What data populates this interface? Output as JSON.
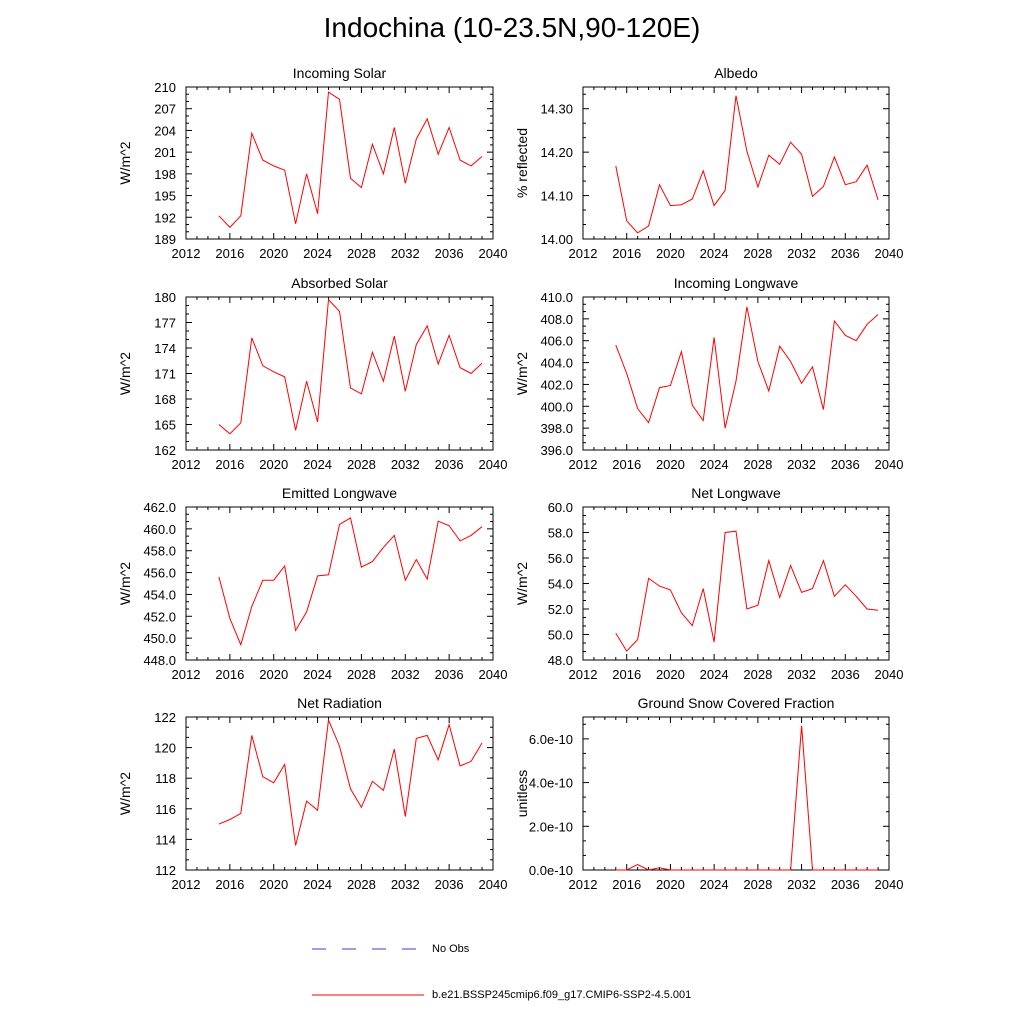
{
  "main_title": "Indochina (10-23.5N,90-120E)",
  "legend": [
    {
      "label": "No Obs",
      "color": "#3b3bd6",
      "style": "dashed"
    },
    {
      "label": "b.e21.BSSP245cmip6.f09_g17.CMIP6-SSP2-4.5.001",
      "color": "#ff0000",
      "style": "solid"
    }
  ],
  "chart_data": [
    {
      "type": "line",
      "title": "Incoming Solar",
      "ylabel": "W/m^2",
      "xlim": [
        2012,
        2040
      ],
      "xticks": [
        "2012",
        "2016",
        "2020",
        "2024",
        "2028",
        "2032",
        "2036",
        "2040"
      ],
      "ylim": [
        189,
        210
      ],
      "yticks": [
        "189",
        "192",
        "195",
        "198",
        "201",
        "204",
        "207",
        "210"
      ],
      "x": [
        2015,
        2016,
        2017,
        2018,
        2019,
        2020,
        2021,
        2022,
        2023,
        2024,
        2025,
        2026,
        2027,
        2028,
        2029,
        2030,
        2031,
        2032,
        2033,
        2034,
        2035,
        2036,
        2037,
        2038,
        2039
      ],
      "series": [
        {
          "color": "#ff0000",
          "values": [
            192.2,
            190.6,
            192.2,
            203.6,
            199.9,
            199.1,
            198.5,
            191.1,
            198.0,
            192.5,
            209.3,
            208.3,
            197.4,
            196.1,
            202.1,
            198.0,
            204.4,
            196.7,
            202.8,
            205.6,
            200.7,
            204.4,
            199.9,
            199.1,
            200.4
          ]
        }
      ]
    },
    {
      "type": "line",
      "title": "Albedo",
      "ylabel": "% reflected",
      "xlim": [
        2012,
        2040
      ],
      "xticks": [
        "2012",
        "2016",
        "2020",
        "2024",
        "2028",
        "2032",
        "2036",
        "2040"
      ],
      "ylim": [
        14.0,
        14.35
      ],
      "yticks": [
        "14.00",
        "14.10",
        "14.20",
        "14.30"
      ],
      "x": [
        2015,
        2016,
        2017,
        2018,
        2019,
        2020,
        2021,
        2022,
        2023,
        2024,
        2025,
        2026,
        2027,
        2028,
        2029,
        2030,
        2031,
        2032,
        2033,
        2034,
        2035,
        2036,
        2037,
        2038,
        2039
      ],
      "series": [
        {
          "color": "#ff0000",
          "values": [
            14.168,
            14.042,
            14.014,
            14.03,
            14.125,
            14.077,
            14.079,
            14.092,
            14.157,
            14.077,
            14.112,
            14.33,
            14.202,
            14.12,
            14.193,
            14.172,
            14.223,
            14.195,
            14.098,
            14.121,
            14.189,
            14.125,
            14.132,
            14.17,
            14.09
          ]
        }
      ]
    },
    {
      "type": "line",
      "title": "Absorbed Solar",
      "ylabel": "W/m^2",
      "xlim": [
        2012,
        2040
      ],
      "xticks": [
        "2012",
        "2016",
        "2020",
        "2024",
        "2028",
        "2032",
        "2036",
        "2040"
      ],
      "ylim": [
        162,
        180
      ],
      "yticks": [
        "162",
        "165",
        "168",
        "171",
        "174",
        "177",
        "180"
      ],
      "x": [
        2015,
        2016,
        2017,
        2018,
        2019,
        2020,
        2021,
        2022,
        2023,
        2024,
        2025,
        2026,
        2027,
        2028,
        2029,
        2030,
        2031,
        2032,
        2033,
        2034,
        2035,
        2036,
        2037,
        2038,
        2039
      ],
      "series": [
        {
          "color": "#ff0000",
          "values": [
            165.0,
            163.9,
            165.2,
            175.2,
            171.9,
            171.2,
            170.6,
            164.3,
            170.1,
            165.3,
            179.7,
            178.3,
            169.3,
            168.6,
            173.5,
            170.1,
            175.4,
            168.9,
            174.4,
            176.6,
            172.1,
            175.5,
            171.7,
            171.0,
            172.2
          ]
        }
      ]
    },
    {
      "type": "line",
      "title": "Incoming Longwave",
      "ylabel": "W/m^2",
      "xlim": [
        2012,
        2040
      ],
      "xticks": [
        "2012",
        "2016",
        "2020",
        "2024",
        "2028",
        "2032",
        "2036",
        "2040"
      ],
      "ylim": [
        396.0,
        410.0
      ],
      "yticks": [
        "396.0",
        "398.0",
        "400.0",
        "402.0",
        "404.0",
        "406.0",
        "408.0",
        "410.0"
      ],
      "x": [
        2015,
        2016,
        2017,
        2018,
        2019,
        2020,
        2021,
        2022,
        2023,
        2024,
        2025,
        2026,
        2027,
        2028,
        2029,
        2030,
        2031,
        2032,
        2033,
        2034,
        2035,
        2036,
        2037,
        2038,
        2039
      ],
      "series": [
        {
          "color": "#ff0000",
          "values": [
            405.6,
            403.0,
            399.8,
            398.5,
            401.7,
            401.9,
            405.0,
            400.1,
            398.7,
            406.3,
            398.0,
            402.3,
            409.1,
            404.1,
            401.4,
            405.5,
            404.1,
            402.1,
            403.6,
            399.7,
            407.8,
            406.5,
            406.0,
            407.5,
            408.4
          ]
        }
      ]
    },
    {
      "type": "line",
      "title": "Emitted Longwave",
      "ylabel": "W/m^2",
      "xlim": [
        2012,
        2040
      ],
      "xticks": [
        "2012",
        "2016",
        "2020",
        "2024",
        "2028",
        "2032",
        "2036",
        "2040"
      ],
      "ylim": [
        448.0,
        462.0
      ],
      "yticks": [
        "448.0",
        "450.0",
        "452.0",
        "454.0",
        "456.0",
        "458.0",
        "460.0",
        "462.0"
      ],
      "x": [
        2015,
        2016,
        2017,
        2018,
        2019,
        2020,
        2021,
        2022,
        2023,
        2024,
        2025,
        2026,
        2027,
        2028,
        2029,
        2030,
        2031,
        2032,
        2033,
        2034,
        2035,
        2036,
        2037,
        2038,
        2039
      ],
      "series": [
        {
          "color": "#ff0000",
          "values": [
            455.6,
            451.8,
            449.4,
            452.9,
            455.3,
            455.3,
            456.6,
            450.7,
            452.4,
            455.7,
            455.8,
            460.4,
            461.0,
            456.5,
            457.0,
            458.3,
            459.4,
            455.3,
            457.2,
            455.4,
            460.7,
            460.3,
            458.9,
            459.4,
            460.2
          ]
        }
      ]
    },
    {
      "type": "line",
      "title": "Net Longwave",
      "ylabel": "W/m^2",
      "xlim": [
        2012,
        2040
      ],
      "xticks": [
        "2012",
        "2016",
        "2020",
        "2024",
        "2028",
        "2032",
        "2036",
        "2040"
      ],
      "ylim": [
        48.0,
        60.0
      ],
      "yticks": [
        "48.0",
        "50.0",
        "52.0",
        "54.0",
        "56.0",
        "58.0",
        "60.0"
      ],
      "x": [
        2015,
        2016,
        2017,
        2018,
        2019,
        2020,
        2021,
        2022,
        2023,
        2024,
        2025,
        2026,
        2027,
        2028,
        2029,
        2030,
        2031,
        2032,
        2033,
        2034,
        2035,
        2036,
        2037,
        2038,
        2039
      ],
      "series": [
        {
          "color": "#ff0000",
          "values": [
            50.1,
            48.7,
            49.6,
            54.4,
            53.8,
            53.5,
            51.7,
            50.7,
            53.6,
            49.4,
            58.0,
            58.1,
            52.0,
            52.3,
            55.8,
            52.9,
            55.4,
            53.3,
            53.6,
            55.8,
            53.0,
            53.9,
            53.0,
            52.0,
            51.9
          ]
        }
      ]
    },
    {
      "type": "line",
      "title": "Net Radiation",
      "ylabel": "W/m^2",
      "xlim": [
        2012,
        2040
      ],
      "xticks": [
        "2012",
        "2016",
        "2020",
        "2024",
        "2028",
        "2032",
        "2036",
        "2040"
      ],
      "ylim": [
        112,
        122
      ],
      "yticks": [
        "112",
        "114",
        "116",
        "118",
        "120",
        "122"
      ],
      "x": [
        2015,
        2016,
        2017,
        2018,
        2019,
        2020,
        2021,
        2022,
        2023,
        2024,
        2025,
        2026,
        2027,
        2028,
        2029,
        2030,
        2031,
        2032,
        2033,
        2034,
        2035,
        2036,
        2037,
        2038,
        2039
      ],
      "series": [
        {
          "color": "#ff0000",
          "values": [
            115.0,
            115.3,
            115.7,
            120.8,
            118.1,
            117.7,
            118.9,
            113.6,
            116.5,
            115.9,
            121.8,
            120.1,
            117.3,
            116.1,
            117.8,
            117.2,
            119.9,
            115.5,
            120.6,
            120.8,
            119.2,
            121.5,
            118.8,
            119.1,
            120.3
          ]
        }
      ]
    },
    {
      "type": "line",
      "title": "Ground Snow Covered Fraction",
      "ylabel": "unitless",
      "xlim": [
        2012,
        2040
      ],
      "xticks": [
        "2012",
        "2016",
        "2020",
        "2024",
        "2028",
        "2032",
        "2036",
        "2040"
      ],
      "ylim": [
        0,
        7e-10
      ],
      "yticks": [
        "0.0e-10",
        "2.0e-10",
        "4.0e-10",
        "6.0e-10"
      ],
      "x": [
        2015,
        2016,
        2017,
        2018,
        2019,
        2020,
        2021,
        2022,
        2023,
        2024,
        2025,
        2026,
        2027,
        2028,
        2029,
        2030,
        2031,
        2032,
        2033,
        2034,
        2035,
        2036,
        2037,
        2038,
        2039
      ],
      "series": [
        {
          "color": "#ff0000",
          "values": [
            0,
            0,
            2.5e-11,
            0,
            1e-11,
            0,
            0,
            0,
            0,
            0,
            0,
            0,
            0,
            0,
            0,
            0,
            0,
            6.6e-10,
            0,
            0,
            0,
            0,
            0,
            0,
            0
          ]
        }
      ]
    }
  ]
}
